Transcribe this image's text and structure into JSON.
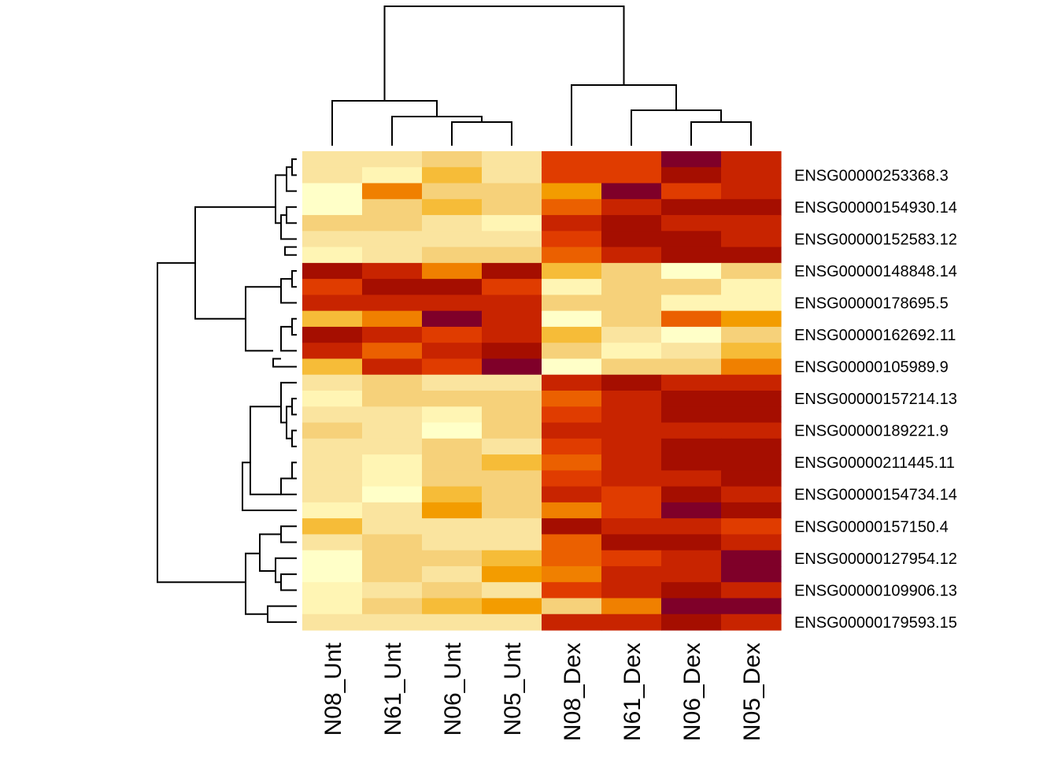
{
  "chart_data": {
    "type": "heatmap",
    "title": "",
    "xlabel": "",
    "ylabel": "",
    "columns": [
      "N08_Unt",
      "N61_Unt",
      "N06_Unt",
      "N05_Unt",
      "N08_Dex",
      "N61_Dex",
      "N06_Dex",
      "N05_Dex"
    ],
    "row_labels": [
      "ENSG00000253368.3",
      "ENSG00000154930.14",
      "ENSG00000152583.12",
      "ENSG00000148848.14",
      "ENSG00000178695.5",
      "ENSG00000162692.11",
      "ENSG00000105989.9",
      "ENSG00000157214.13",
      "ENSG00000189221.9",
      "ENSG00000211445.11",
      "ENSG00000154734.14",
      "ENSG00000157150.4",
      "ENSG00000127954.12",
      "ENSG00000109906.13",
      "ENSG00000179593.15"
    ],
    "row_count": 30,
    "color_scale": {
      "name": "heat",
      "low_to_high": [
        "#ffffc8",
        "#fff5b4",
        "#fae49f",
        "#f6d17a",
        "#f6bc38",
        "#f39c00",
        "#f08000",
        "#eb6000",
        "#e03c00",
        "#c82400",
        "#a50e00",
        "#7f0029"
      ]
    },
    "matrix_levels": [
      [
        2,
        2,
        3,
        2,
        8,
        8,
        11,
        9
      ],
      [
        2,
        1,
        4,
        2,
        8,
        8,
        10,
        9
      ],
      [
        0,
        6,
        3,
        3,
        5,
        11,
        8,
        9
      ],
      [
        0,
        3,
        4,
        3,
        7,
        9,
        10,
        10
      ],
      [
        3,
        3,
        2,
        1,
        9,
        10,
        9,
        9
      ],
      [
        2,
        2,
        2,
        2,
        8,
        10,
        10,
        9
      ],
      [
        1,
        2,
        3,
        3,
        7,
        9,
        10,
        10
      ],
      [
        10,
        9,
        6,
        10,
        4,
        3,
        0,
        3
      ],
      [
        8,
        10,
        10,
        8,
        1,
        3,
        3,
        1
      ],
      [
        9,
        9,
        9,
        9,
        3,
        3,
        1,
        1
      ],
      [
        4,
        6,
        11,
        9,
        0,
        3,
        7,
        5
      ],
      [
        10,
        9,
        8,
        9,
        4,
        2,
        0,
        3
      ],
      [
        9,
        7,
        9,
        10,
        3,
        1,
        2,
        4
      ],
      [
        4,
        9,
        8,
        11,
        0,
        3,
        3,
        6
      ],
      [
        2,
        3,
        2,
        2,
        9,
        10,
        9,
        9
      ],
      [
        1,
        3,
        3,
        3,
        7,
        9,
        10,
        10
      ],
      [
        2,
        2,
        1,
        3,
        8,
        9,
        10,
        10
      ],
      [
        3,
        2,
        0,
        3,
        9,
        9,
        9,
        9
      ],
      [
        2,
        2,
        3,
        2,
        8,
        9,
        10,
        10
      ],
      [
        2,
        1,
        3,
        4,
        7,
        9,
        10,
        10
      ],
      [
        2,
        1,
        3,
        3,
        8,
        9,
        9,
        10
      ],
      [
        2,
        0,
        4,
        3,
        9,
        8,
        10,
        9
      ],
      [
        1,
        2,
        5,
        3,
        6,
        8,
        11,
        10
      ],
      [
        4,
        2,
        2,
        2,
        10,
        9,
        9,
        8
      ],
      [
        2,
        3,
        2,
        2,
        7,
        10,
        10,
        9
      ],
      [
        0,
        3,
        3,
        4,
        7,
        8,
        9,
        11
      ],
      [
        0,
        3,
        2,
        5,
        6,
        9,
        9,
        11
      ],
      [
        1,
        2,
        3,
        2,
        8,
        9,
        10,
        9
      ],
      [
        1,
        3,
        4,
        5,
        3,
        6,
        11,
        11
      ],
      [
        2,
        2,
        2,
        2,
        9,
        9,
        10,
        9
      ]
    ],
    "col_order_clusters": [
      [
        [
          "N08_Unt"
        ],
        [
          [
            "N61_Unt"
          ],
          [
            [
              "N06_Unt"
            ],
            [
              "N05_Unt"
            ]
          ]
        ]
      ],
      [
        [
          "N08_Dex"
        ],
        [
          [
            "N61_Dex"
          ],
          [
            [
              "N06_Dex"
            ],
            [
              "N05_Dex"
            ]
          ]
        ]
      ]
    ],
    "grid": false,
    "legend": "none"
  }
}
